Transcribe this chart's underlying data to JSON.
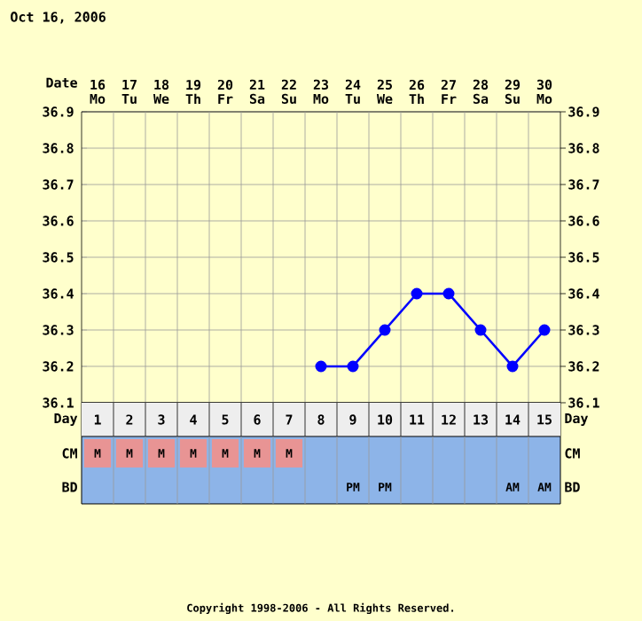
{
  "chart_data": [
    {
      "type": "line",
      "title": "Oct 16, 2006",
      "x2label": "Date",
      "categories": [
        null,
        null,
        null,
        null,
        null,
        null,
        null,
        null,
        null,
        null,
        null,
        null,
        null,
        null,
        null
      ],
      "series": [
        {
          "color": "#0000ff",
          "values": [
            null,
            null,
            null,
            null,
            null,
            null,
            null,
            36.2,
            36.2,
            36.3,
            36.4,
            36.4,
            36.3,
            36.2,
            36.3
          ]
        }
      ],
      "x2lim": [
        15.5,
        30.5
      ],
      "x2ticks": [
        {
          "value": 16,
          "label": "16 Mo"
        },
        {
          "value": 17,
          "label": "17 Tu"
        },
        {
          "value": 18,
          "label": "18 We"
        },
        {
          "value": 19,
          "label": "19 Th"
        },
        {
          "value": 20,
          "label": "20 Fr"
        },
        {
          "value": 21,
          "label": "21 Sa"
        },
        {
          "value": 22,
          "label": "22 Su"
        },
        {
          "value": 23,
          "label": "23 Mo"
        },
        {
          "value": 24,
          "label": "24 Tu"
        },
        {
          "value": 25,
          "label": "25 We"
        },
        {
          "value": 26,
          "label": "26 Th"
        },
        {
          "value": 27,
          "label": "27 Fr"
        },
        {
          "value": 28,
          "label": "28 Sa"
        },
        {
          "value": 29,
          "label": "29 Su"
        },
        {
          "value": 30,
          "label": "30 Mo"
        }
      ],
      "ylim": [
        36.1,
        36.9
      ],
      "yticks": [
        36.1,
        36.2,
        36.3,
        36.4,
        36.5,
        36.6,
        36.7,
        36.8,
        36.9
      ],
      "y2lim": [
        36.1,
        36.9
      ],
      "y2ticks": [
        36.1,
        36.2,
        36.3,
        36.4,
        36.5,
        36.6,
        36.7,
        36.8,
        36.9
      ],
      "grid": true,
      "marker": "circle",
      "line_style": "solid"
    },
    {
      "type": "heatmap",
      "xlabel": "Day",
      "categories": [
        "1",
        "2",
        "3",
        "4",
        "5",
        "6",
        "7",
        "8",
        "9",
        "10",
        "11",
        "12",
        "13",
        "14",
        "15"
      ],
      "y_categories": [
        "CM",
        "BD"
      ],
      "y2_categories": [
        "CM",
        "BD"
      ],
      "cells": [
        [
          null,
          null,
          null,
          null,
          null,
          null,
          null,
          null,
          null,
          null,
          null,
          null,
          null,
          null,
          null
        ],
        [
          null,
          null,
          null,
          null,
          null,
          null,
          null,
          null,
          null,
          null,
          null,
          null,
          null,
          null,
          null
        ]
      ],
      "cell_labels": [
        [
          "M",
          "M",
          "M",
          "M",
          "M",
          "M",
          "M",
          null,
          null,
          null,
          null,
          null,
          null,
          null,
          null
        ],
        [
          null,
          null,
          null,
          null,
          null,
          null,
          null,
          null,
          "PM",
          "PM",
          null,
          null,
          null,
          "AM",
          "AM"
        ]
      ],
      "annotations": [
        "Copyright 1998-2006 - All Rights Reserved."
      ]
    }
  ]
}
